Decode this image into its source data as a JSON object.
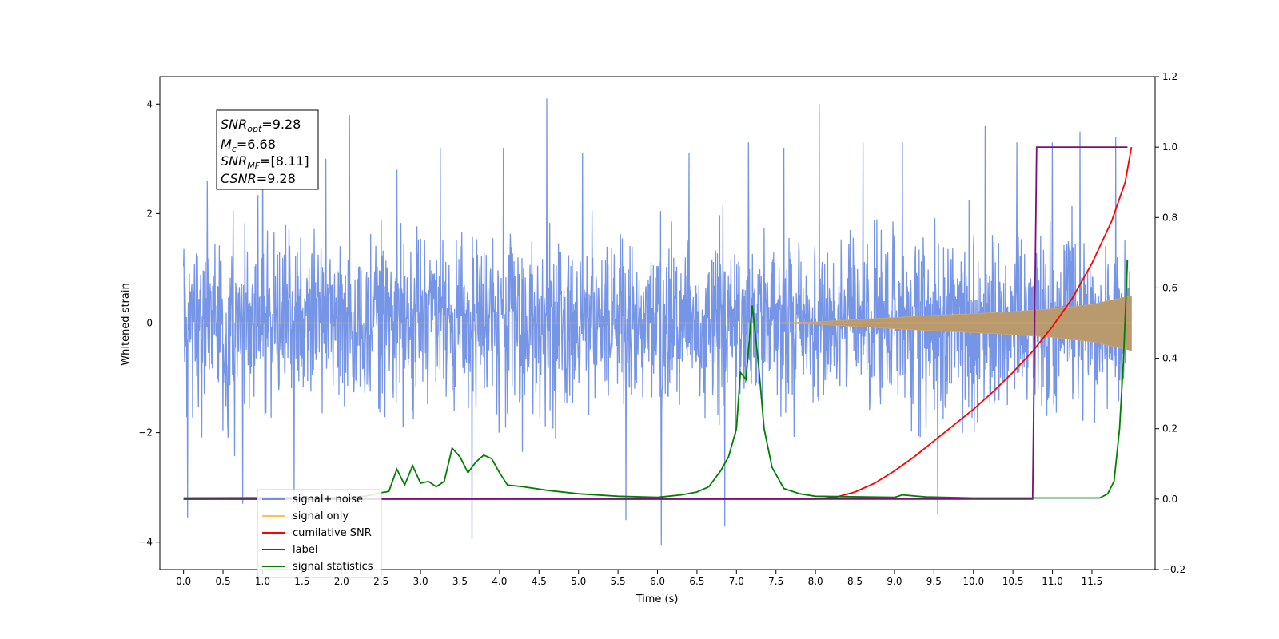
{
  "chart_data": {
    "type": "line",
    "xlabel": "Time (s)",
    "ylabel": "Whitened strain",
    "xlim": [
      -0.3,
      12.3
    ],
    "ylim": [
      -4.5,
      4.5
    ],
    "ylim_right": [
      -0.2,
      1.2
    ],
    "x_ticks": [
      "0.0",
      "0.5",
      "1.0",
      "1.5",
      "2.0",
      "2.5",
      "3.0",
      "3.5",
      "4.0",
      "4.5",
      "5.0",
      "5.5",
      "6.0",
      "6.5",
      "7.0",
      "7.5",
      "8.0",
      "8.5",
      "9.0",
      "9.5",
      "10.0",
      "10.5",
      "11.0",
      "11.5"
    ],
    "y_ticks": [
      "4",
      "2",
      "0",
      "−2",
      "−4"
    ],
    "y_ticks_right": [
      "1.2",
      "1.0",
      "0.8",
      "0.6",
      "0.4",
      "0.2",
      "0.0",
      "−0.2"
    ],
    "grid": false,
    "legend_position": "lower-left",
    "annotation": {
      "snr_opt": "=9.28",
      "mc": "=6.68",
      "snr_mf": "=[8.11]",
      "csnr": "=9.28"
    },
    "series": [
      {
        "name": "signal+ noise",
        "axis": "left",
        "color": "#6f8fe6",
        "description_range": {
          "x": [
            0.0,
            12.0
          ],
          "typical_amplitude": [
            -2.3,
            2.3
          ],
          "max": 4.1,
          "min": -4.05
        },
        "peaks": [
          {
            "x": 0.05,
            "y": -3.55
          },
          {
            "x": 0.3,
            "y": 2.6
          },
          {
            "x": 0.75,
            "y": -3.3
          },
          {
            "x": 1.0,
            "y": 3.5
          },
          {
            "x": 1.4,
            "y": -3.3
          },
          {
            "x": 1.8,
            "y": 3.0
          },
          {
            "x": 2.1,
            "y": 3.8
          },
          {
            "x": 2.7,
            "y": 2.8
          },
          {
            "x": 3.25,
            "y": 3.2
          },
          {
            "x": 3.65,
            "y": -3.95
          },
          {
            "x": 4.05,
            "y": 3.2
          },
          {
            "x": 4.6,
            "y": 4.1
          },
          {
            "x": 5.05,
            "y": 3.1
          },
          {
            "x": 5.6,
            "y": -3.6
          },
          {
            "x": 6.05,
            "y": -4.05
          },
          {
            "x": 6.4,
            "y": 3.1
          },
          {
            "x": 6.85,
            "y": -3.7
          },
          {
            "x": 7.15,
            "y": 3.3
          },
          {
            "x": 7.6,
            "y": 3.2
          },
          {
            "x": 8.05,
            "y": 4.0
          },
          {
            "x": 8.6,
            "y": 3.3
          },
          {
            "x": 9.1,
            "y": 3.3
          },
          {
            "x": 9.55,
            "y": -3.5
          },
          {
            "x": 10.15,
            "y": 3.6
          },
          {
            "x": 10.55,
            "y": 3.3
          },
          {
            "x": 11.0,
            "y": 3.3
          },
          {
            "x": 11.35,
            "y": 3.5
          },
          {
            "x": 11.8,
            "y": 3.4
          }
        ]
      },
      {
        "name": "signal only",
        "axis": "left",
        "color": "#ffc04d",
        "envelope": [
          {
            "x": 0.0,
            "y": 0.0
          },
          {
            "x": 7.5,
            "y": 0.0
          },
          {
            "x": 8.0,
            "y": 0.02
          },
          {
            "x": 8.5,
            "y": 0.06
          },
          {
            "x": 9.0,
            "y": 0.1
          },
          {
            "x": 9.5,
            "y": 0.14
          },
          {
            "x": 10.0,
            "y": 0.17
          },
          {
            "x": 10.5,
            "y": 0.21
          },
          {
            "x": 11.0,
            "y": 0.26
          },
          {
            "x": 11.5,
            "y": 0.34
          },
          {
            "x": 12.0,
            "y": 0.5
          }
        ]
      },
      {
        "name": "cumilative SNR",
        "axis": "right",
        "color": "#ff0000",
        "points": [
          {
            "x": 0.0,
            "y": 0.0
          },
          {
            "x": 8.0,
            "y": 0.0
          },
          {
            "x": 8.25,
            "y": 0.005
          },
          {
            "x": 8.5,
            "y": 0.02
          },
          {
            "x": 8.75,
            "y": 0.045
          },
          {
            "x": 9.0,
            "y": 0.08
          },
          {
            "x": 9.25,
            "y": 0.12
          },
          {
            "x": 9.5,
            "y": 0.165
          },
          {
            "x": 9.75,
            "y": 0.21
          },
          {
            "x": 10.0,
            "y": 0.255
          },
          {
            "x": 10.25,
            "y": 0.305
          },
          {
            "x": 10.5,
            "y": 0.36
          },
          {
            "x": 10.75,
            "y": 0.42
          },
          {
            "x": 11.0,
            "y": 0.49
          },
          {
            "x": 11.25,
            "y": 0.57
          },
          {
            "x": 11.5,
            "y": 0.67
          },
          {
            "x": 11.75,
            "y": 0.79
          },
          {
            "x": 11.92,
            "y": 0.9
          },
          {
            "x": 12.0,
            "y": 1.0
          }
        ]
      },
      {
        "name": "label",
        "axis": "right",
        "color": "#7b0f7b",
        "points": [
          {
            "x": 0.0,
            "y": 0.0
          },
          {
            "x": 10.75,
            "y": 0.0
          },
          {
            "x": 10.8,
            "y": 1.0
          },
          {
            "x": 11.95,
            "y": 1.0
          }
        ]
      },
      {
        "name": "signal statistics",
        "axis": "right",
        "color": "#008000",
        "points": [
          {
            "x": 0.0,
            "y": 0.003
          },
          {
            "x": 2.0,
            "y": 0.004
          },
          {
            "x": 2.3,
            "y": 0.008
          },
          {
            "x": 2.5,
            "y": 0.018
          },
          {
            "x": 2.6,
            "y": 0.022
          },
          {
            "x": 2.7,
            "y": 0.085
          },
          {
            "x": 2.8,
            "y": 0.04
          },
          {
            "x": 2.9,
            "y": 0.095
          },
          {
            "x": 3.0,
            "y": 0.045
          },
          {
            "x": 3.1,
            "y": 0.05
          },
          {
            "x": 3.2,
            "y": 0.035
          },
          {
            "x": 3.3,
            "y": 0.05
          },
          {
            "x": 3.4,
            "y": 0.145
          },
          {
            "x": 3.5,
            "y": 0.12
          },
          {
            "x": 3.6,
            "y": 0.075
          },
          {
            "x": 3.7,
            "y": 0.105
          },
          {
            "x": 3.8,
            "y": 0.125
          },
          {
            "x": 3.9,
            "y": 0.115
          },
          {
            "x": 4.0,
            "y": 0.075
          },
          {
            "x": 4.1,
            "y": 0.04
          },
          {
            "x": 4.3,
            "y": 0.035
          },
          {
            "x": 4.6,
            "y": 0.025
          },
          {
            "x": 5.0,
            "y": 0.015
          },
          {
            "x": 5.5,
            "y": 0.008
          },
          {
            "x": 6.0,
            "y": 0.005
          },
          {
            "x": 6.3,
            "y": 0.012
          },
          {
            "x": 6.5,
            "y": 0.02
          },
          {
            "x": 6.65,
            "y": 0.035
          },
          {
            "x": 6.8,
            "y": 0.08
          },
          {
            "x": 6.9,
            "y": 0.12
          },
          {
            "x": 7.0,
            "y": 0.2
          },
          {
            "x": 7.05,
            "y": 0.36
          },
          {
            "x": 7.12,
            "y": 0.34
          },
          {
            "x": 7.2,
            "y": 0.55
          },
          {
            "x": 7.28,
            "y": 0.38
          },
          {
            "x": 7.35,
            "y": 0.2
          },
          {
            "x": 7.45,
            "y": 0.09
          },
          {
            "x": 7.6,
            "y": 0.03
          },
          {
            "x": 7.8,
            "y": 0.015
          },
          {
            "x": 8.0,
            "y": 0.008
          },
          {
            "x": 9.0,
            "y": 0.005
          },
          {
            "x": 9.1,
            "y": 0.012
          },
          {
            "x": 9.4,
            "y": 0.006
          },
          {
            "x": 10.0,
            "y": 0.003
          },
          {
            "x": 11.6,
            "y": 0.003
          },
          {
            "x": 11.7,
            "y": 0.015
          },
          {
            "x": 11.78,
            "y": 0.05
          },
          {
            "x": 11.85,
            "y": 0.2
          },
          {
            "x": 11.9,
            "y": 0.4
          },
          {
            "x": 11.95,
            "y": 0.68
          }
        ]
      }
    ]
  }
}
